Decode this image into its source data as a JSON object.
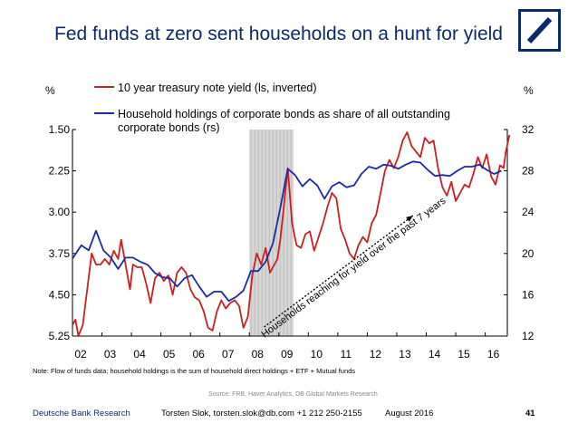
{
  "header": {
    "title": "Fed funds at zero sent households on a hunt for yield"
  },
  "brand": {
    "color": "#0b2a6b",
    "logo": "deutsche-bank-slash-logo"
  },
  "chart_data": {
    "type": "line",
    "left_unit_label": "%",
    "right_unit_label": "%",
    "left_axis": {
      "min": 1.5,
      "max": 5.25,
      "inverted": true,
      "ticks": [
        "1.50",
        "2.25",
        "3.00",
        "3.75",
        "4.50",
        "5.25"
      ],
      "tick_values": [
        1.5,
        2.25,
        3.0,
        3.75,
        4.5,
        5.25
      ]
    },
    "right_axis": {
      "min": 12,
      "max": 32,
      "ticks": [
        "32",
        "28",
        "24",
        "20",
        "16",
        "12"
      ],
      "tick_values": [
        32,
        28,
        24,
        20,
        16,
        12
      ]
    },
    "x_axis": {
      "min": 2002,
      "max": 2016.75,
      "ticks": [
        "02",
        "03",
        "04",
        "05",
        "06",
        "07",
        "08",
        "09",
        "10",
        "11",
        "12",
        "13",
        "14",
        "15",
        "16"
      ],
      "tick_values": [
        2002.0,
        2003.0,
        2004.0,
        2005.0,
        2006.0,
        2007.0,
        2008.0,
        2009.0,
        2010.0,
        2011.0,
        2012.0,
        2013.0,
        2014.0,
        2015.0,
        2016.0
      ]
    },
    "shaded_period": [
      2008.0,
      2009.5
    ],
    "annotation": "Households reaching for yield over the past 7 years",
    "series": [
      {
        "name": "10 year treasury note yield (ls, inverted)",
        "axis": "left",
        "color": "#cc1f1f",
        "x": [
          2002.0,
          2002.1,
          2002.2,
          2002.35,
          2002.5,
          2002.65,
          2002.8,
          2002.95,
          2003.1,
          2003.25,
          2003.4,
          2003.55,
          2003.65,
          2003.8,
          2003.95,
          2004.05,
          2004.2,
          2004.35,
          2004.5,
          2004.65,
          2004.8,
          2004.95,
          2005.1,
          2005.25,
          2005.4,
          2005.55,
          2005.7,
          2005.85,
          2006.0,
          2006.15,
          2006.3,
          2006.45,
          2006.6,
          2006.75,
          2006.9,
          2007.05,
          2007.2,
          2007.35,
          2007.5,
          2007.65,
          2007.8,
          2007.95,
          2008.1,
          2008.25,
          2008.4,
          2008.55,
          2008.7,
          2008.85,
          2008.95,
          2009.05,
          2009.15,
          2009.3,
          2009.45,
          2009.6,
          2009.75,
          2009.9,
          2010.05,
          2010.2,
          2010.35,
          2010.5,
          2010.65,
          2010.8,
          2010.95,
          2011.1,
          2011.25,
          2011.4,
          2011.55,
          2011.7,
          2011.85,
          2012.0,
          2012.15,
          2012.3,
          2012.45,
          2012.6,
          2012.75,
          2012.9,
          2013.05,
          2013.2,
          2013.35,
          2013.5,
          2013.65,
          2013.8,
          2013.95,
          2014.1,
          2014.25,
          2014.4,
          2014.55,
          2014.7,
          2014.85,
          2015.0,
          2015.15,
          2015.3,
          2015.45,
          2015.6,
          2015.75,
          2015.9,
          2016.05,
          2016.2,
          2016.35,
          2016.5,
          2016.62
        ],
        "values": [
          5.05,
          4.95,
          5.25,
          5.05,
          4.4,
          3.75,
          3.95,
          3.95,
          3.85,
          3.95,
          3.7,
          3.85,
          3.5,
          3.95,
          4.4,
          3.95,
          4.0,
          4.0,
          4.3,
          4.65,
          4.2,
          4.1,
          4.25,
          4.15,
          4.5,
          4.1,
          4.0,
          4.1,
          4.4,
          4.55,
          4.6,
          4.8,
          5.1,
          5.15,
          4.8,
          4.6,
          4.75,
          4.65,
          4.6,
          4.7,
          5.1,
          4.9,
          4.15,
          3.75,
          3.95,
          3.65,
          4.1,
          3.95,
          3.85,
          3.5,
          3.0,
          2.2,
          3.2,
          3.6,
          3.65,
          3.4,
          3.35,
          3.7,
          3.45,
          3.2,
          2.9,
          2.65,
          2.75,
          3.3,
          3.5,
          3.75,
          3.85,
          3.6,
          3.45,
          3.55,
          3.2,
          3.05,
          2.65,
          2.25,
          2.05,
          2.2,
          2.0,
          1.7,
          1.55,
          1.8,
          1.9,
          2.0,
          1.65,
          1.75,
          1.7,
          2.2,
          2.55,
          2.7,
          2.45,
          2.8,
          2.65,
          2.5,
          2.55,
          2.3,
          2.0,
          2.2,
          1.95,
          2.35,
          2.5,
          2.15,
          2.2
        ],
        "more_x": [
          2016.7,
          2016.82
        ],
        "more_values": [
          1.9,
          1.6
        ]
      },
      {
        "name": "Household holdings of corporate bonds as share of all outstanding corporate bonds (rs)",
        "axis": "right",
        "color": "#1a2aa8",
        "x": [
          2002.0,
          2002.3,
          2002.55,
          2002.8,
          2003.05,
          2003.3,
          2003.55,
          2003.8,
          2004.05,
          2004.3,
          2004.55,
          2004.8,
          2005.05,
          2005.3,
          2005.55,
          2005.8,
          2006.05,
          2006.3,
          2006.55,
          2006.8,
          2007.05,
          2007.3,
          2007.55,
          2007.8,
          2008.05,
          2008.3,
          2008.55,
          2008.8,
          2009.05,
          2009.3,
          2009.55,
          2009.8,
          2010.05,
          2010.3,
          2010.55,
          2010.8,
          2011.05,
          2011.3,
          2011.55,
          2011.8,
          2012.05,
          2012.3,
          2012.55,
          2012.8,
          2013.05,
          2013.3,
          2013.55,
          2013.8,
          2014.05,
          2014.3,
          2014.55,
          2014.8,
          2015.05,
          2015.3,
          2015.55,
          2015.8,
          2016.05,
          2016.3,
          2016.55
        ],
        "values": [
          19.5,
          20.8,
          20.3,
          22.2,
          20.3,
          19.6,
          18.5,
          19.6,
          19.6,
          19.2,
          18.9,
          18.1,
          17.7,
          17.6,
          16.8,
          17.6,
          17.9,
          16.8,
          15.8,
          16.3,
          16.3,
          15.4,
          15.8,
          16.4,
          18.3,
          18.3,
          19.2,
          21.0,
          24.4,
          28.2,
          27.6,
          26.5,
          27.2,
          26.6,
          25.3,
          26.5,
          26.9,
          26.4,
          26.6,
          27.7,
          28.4,
          28.2,
          28.6,
          28.5,
          28.2,
          28.6,
          28.9,
          28.8,
          28.1,
          27.5,
          27.6,
          27.5,
          28.0,
          28.4,
          28.4,
          28.6,
          28.1,
          27.7,
          28.0
        ]
      }
    ]
  },
  "note": "Note: Flow of funds data; household holdings is the sum of household direct holdings + ETF + Mutual funds",
  "source": "Source: FRB, Haver Analytics, DB Global Markets Research",
  "footer": {
    "org": "Deutsche Bank Research",
    "author": "Torsten Slok, torsten.slok@db.com +1 212 250-2155",
    "date": "August 2016",
    "page": "41"
  }
}
